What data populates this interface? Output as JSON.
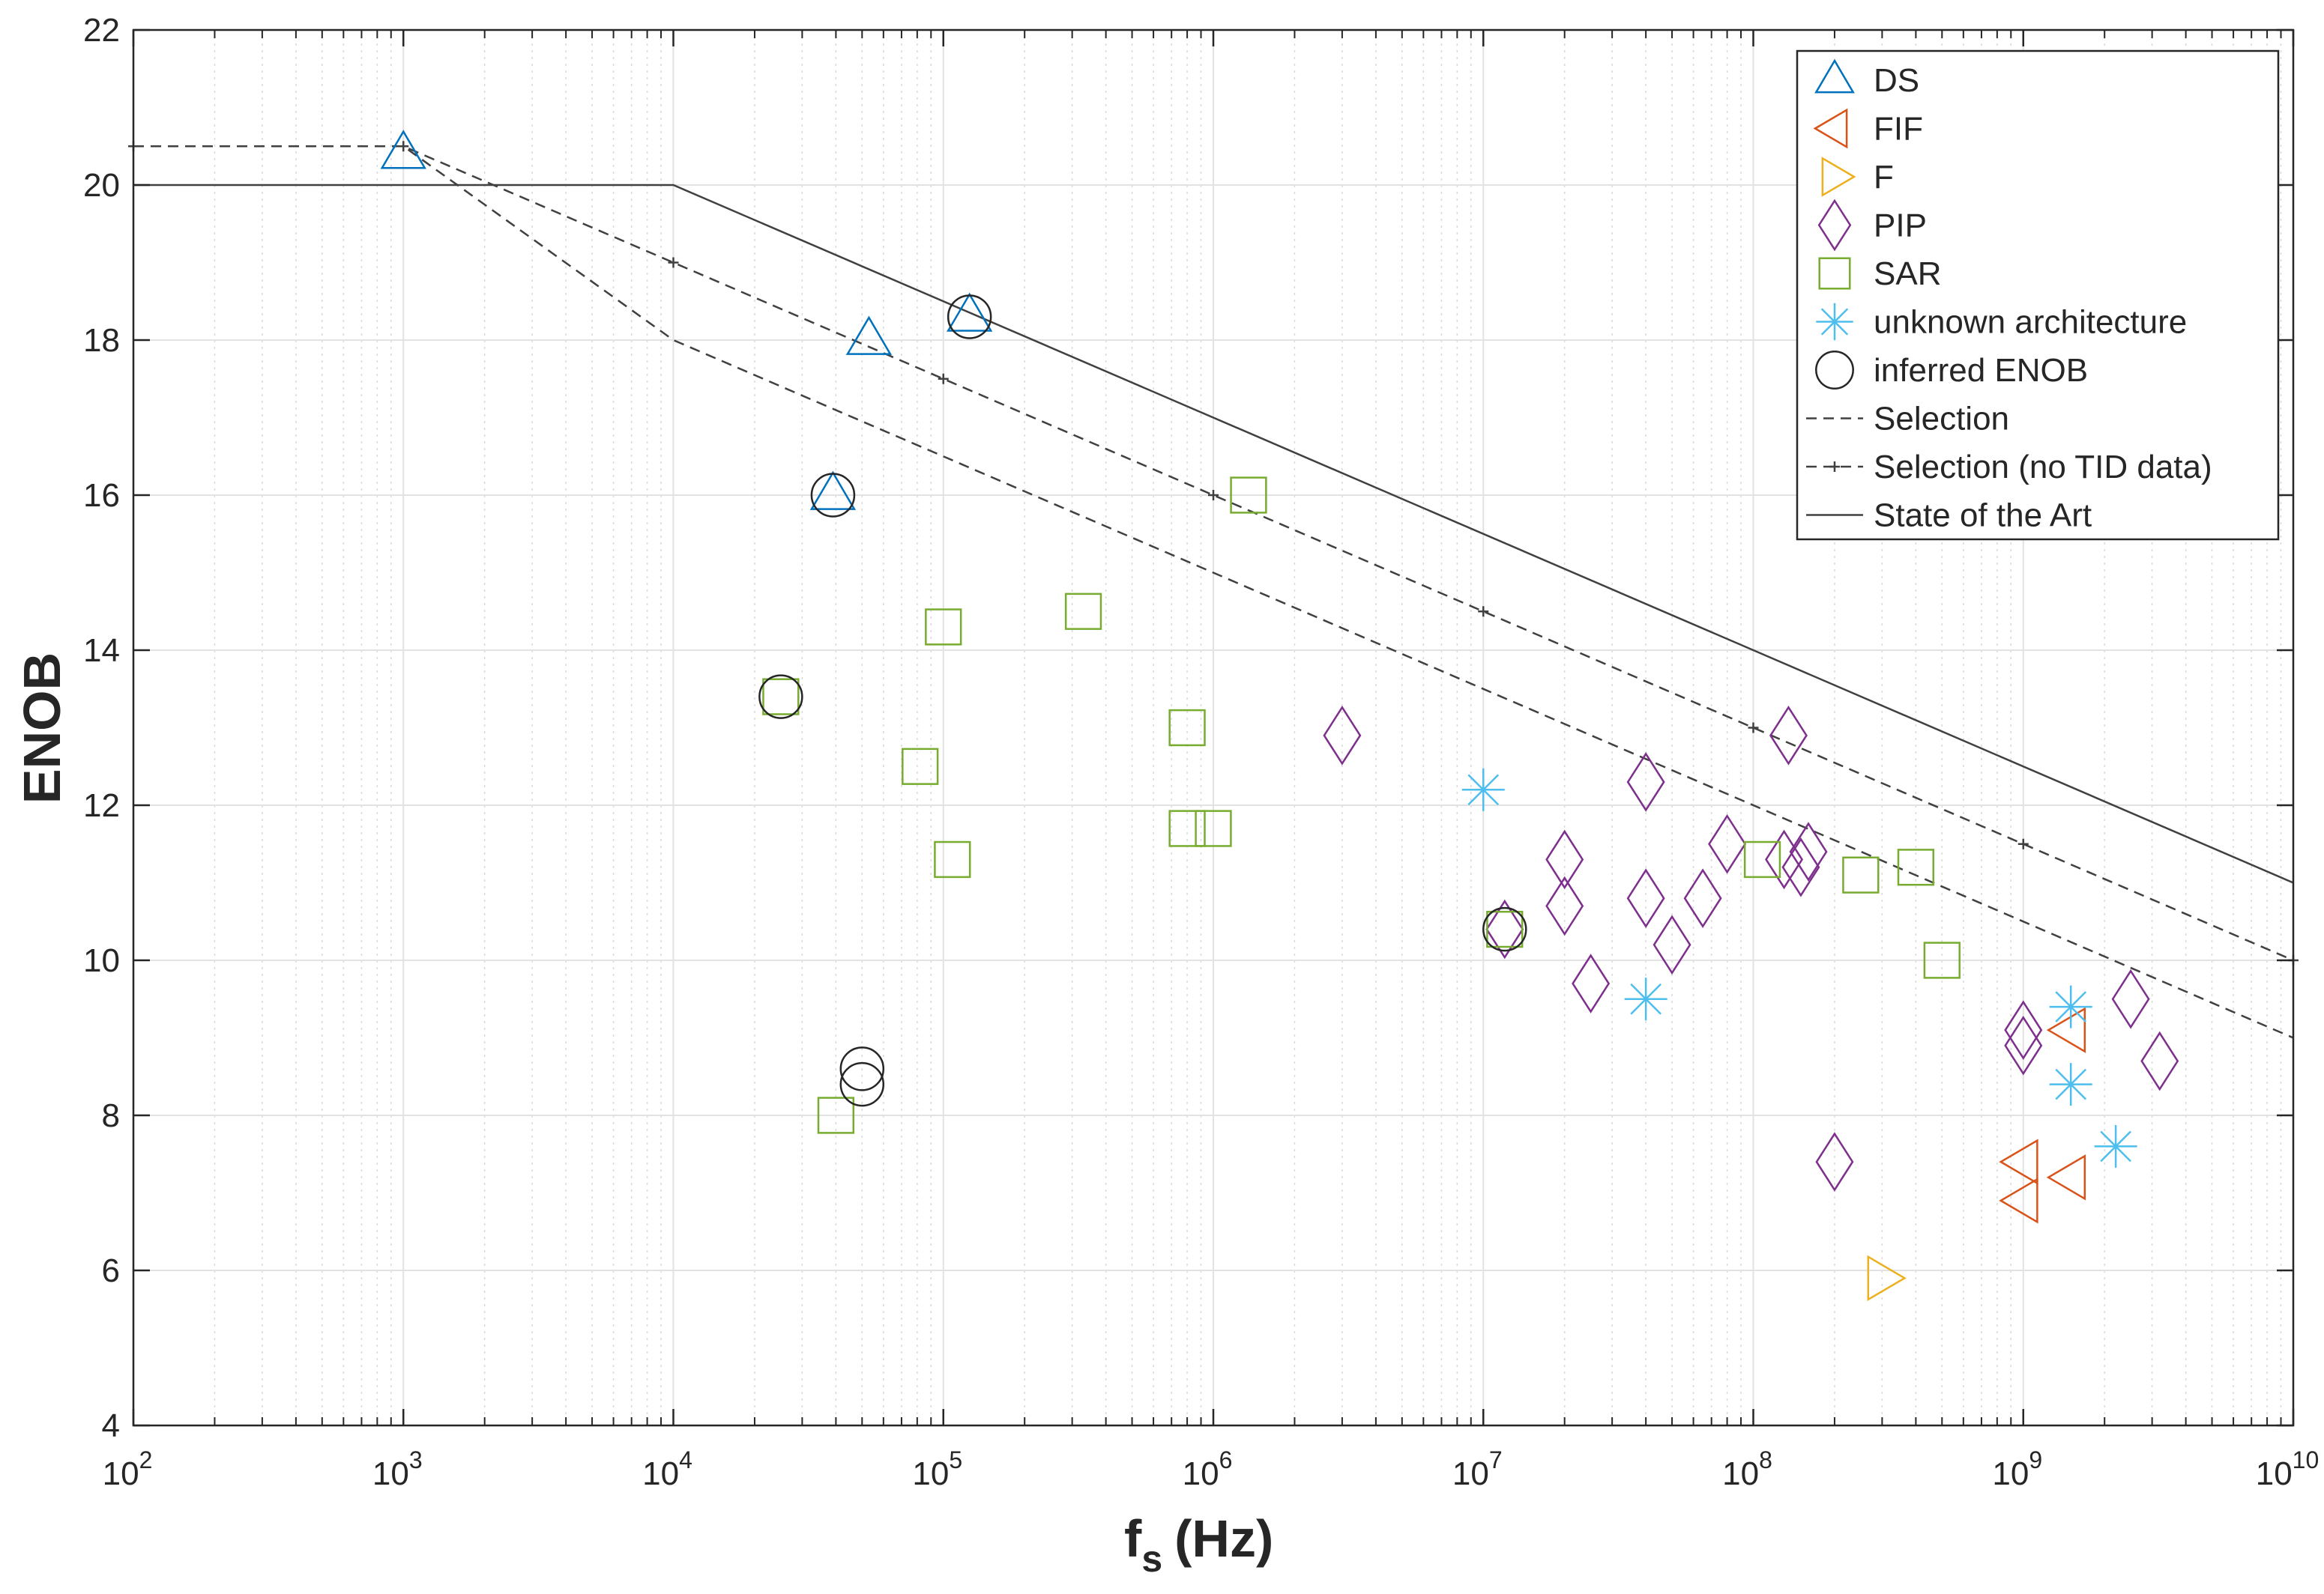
{
  "chart_data": {
    "type": "scatter",
    "title": "",
    "xlabel": "f",
    "xlabel_sub": "s",
    "xlabel_unit": "(Hz)",
    "ylabel": "ENOB",
    "x_scale": "log",
    "xlim": [
      100,
      10000000000
    ],
    "ylim": [
      4,
      22
    ],
    "grid": true,
    "legend_position": "top-right",
    "x_ticks": [
      {
        "value": 100,
        "base": "10",
        "exp": "2"
      },
      {
        "value": 1000,
        "base": "10",
        "exp": "3"
      },
      {
        "value": 10000,
        "base": "10",
        "exp": "4"
      },
      {
        "value": 100000,
        "base": "10",
        "exp": "5"
      },
      {
        "value": 1000000,
        "base": "10",
        "exp": "6"
      },
      {
        "value": 10000000,
        "base": "10",
        "exp": "7"
      },
      {
        "value": 100000000,
        "base": "10",
        "exp": "8"
      },
      {
        "value": 1000000000,
        "base": "10",
        "exp": "9"
      },
      {
        "value": 10000000000,
        "base": "10",
        "exp": "10"
      }
    ],
    "y_ticks": [
      {
        "value": 4,
        "label": "4"
      },
      {
        "value": 6,
        "label": "6"
      },
      {
        "value": 8,
        "label": "8"
      },
      {
        "value": 10,
        "label": "10"
      },
      {
        "value": 12,
        "label": "12"
      },
      {
        "value": 14,
        "label": "14"
      },
      {
        "value": 16,
        "label": "16"
      },
      {
        "value": 18,
        "label": "18"
      },
      {
        "value": 20,
        "label": "20"
      },
      {
        "value": 22,
        "label": "22"
      }
    ],
    "series": [
      {
        "name": "DS",
        "marker": "triangle-up",
        "color": "#0072BD",
        "points": [
          [
            1000,
            20.4
          ],
          [
            53000,
            18.0
          ],
          [
            39000,
            16.0
          ],
          [
            125000,
            18.3
          ]
        ]
      },
      {
        "name": "FIF",
        "marker": "triangle-left",
        "color": "#D95319",
        "points": [
          [
            1000000000,
            7.4
          ],
          [
            1000000000,
            6.9
          ],
          [
            1500000000,
            9.1
          ],
          [
            1500000000,
            7.2
          ]
        ]
      },
      {
        "name": "F",
        "marker": "triangle-right",
        "color": "#EDB120",
        "points": [
          [
            300000000,
            5.9
          ]
        ]
      },
      {
        "name": "PIP",
        "marker": "diamond",
        "color": "#7E2F8E",
        "points": [
          [
            3000000,
            12.9
          ],
          [
            12000000,
            10.4
          ],
          [
            20000000,
            11.3
          ],
          [
            20000000,
            10.7
          ],
          [
            25000000,
            9.7
          ],
          [
            40000000,
            12.3
          ],
          [
            40000000,
            10.8
          ],
          [
            50000000,
            10.2
          ],
          [
            65000000,
            10.8
          ],
          [
            80000000,
            11.5
          ],
          [
            130000000,
            11.3
          ],
          [
            135000000,
            12.9
          ],
          [
            150000000,
            11.2
          ],
          [
            160000000,
            11.4
          ],
          [
            200000000,
            7.4
          ],
          [
            1000000000,
            9.1
          ],
          [
            1000000000,
            8.9
          ],
          [
            2500000000,
            9.5
          ],
          [
            3200000000,
            8.7
          ]
        ]
      },
      {
        "name": "SAR",
        "marker": "square",
        "color": "#77AC30",
        "points": [
          [
            25000,
            13.4
          ],
          [
            40000,
            8.0
          ],
          [
            82000,
            12.5
          ],
          [
            100000,
            14.3
          ],
          [
            108000,
            11.3
          ],
          [
            330000,
            14.5
          ],
          [
            800000,
            13.0
          ],
          [
            800000,
            11.7
          ],
          [
            1000000,
            11.7
          ],
          [
            1350000,
            16.0
          ],
          [
            12000000,
            10.4
          ],
          [
            108000000,
            11.3
          ],
          [
            250000000,
            11.1
          ],
          [
            400000000,
            11.2
          ],
          [
            500000000,
            10.0
          ]
        ]
      },
      {
        "name": "unknown architecture",
        "marker": "asterisk",
        "color": "#4DBEEE",
        "points": [
          [
            10000000,
            12.2
          ],
          [
            40000000,
            9.5
          ],
          [
            1500000000,
            9.4
          ],
          [
            1500000000,
            8.4
          ],
          [
            2200000000,
            7.6
          ]
        ]
      },
      {
        "name": "inferred ENOB",
        "marker": "circle",
        "color": "#262626",
        "points": [
          [
            25000,
            13.4
          ],
          [
            39000,
            16.0
          ],
          [
            125000,
            18.3
          ],
          [
            50000,
            8.6
          ],
          [
            50000,
            8.4
          ],
          [
            12000000,
            10.4
          ]
        ]
      },
      {
        "name": "Selection",
        "marker": "none",
        "line": "dashed",
        "color": "#404040",
        "points": [
          [
            100,
            20.5
          ],
          [
            1000,
            20.5
          ],
          [
            10000,
            18.0
          ],
          [
            10000000000,
            9.0
          ]
        ]
      },
      {
        "name": "Selection (no TID data)",
        "marker": "plus",
        "line": "dashed",
        "color": "#404040",
        "points": [
          [
            100,
            20.5
          ],
          [
            1000,
            20.5
          ],
          [
            10000,
            19.0
          ],
          [
            100000,
            17.5
          ],
          [
            1000000,
            16.0
          ],
          [
            10000000,
            14.5
          ],
          [
            100000000,
            13.0
          ],
          [
            1000000000,
            11.5
          ],
          [
            10000000000,
            10.0
          ]
        ]
      },
      {
        "name": "State of the Art",
        "marker": "none",
        "line": "solid",
        "color": "#404040",
        "points": [
          [
            100,
            20.0
          ],
          [
            10000,
            20.0
          ],
          [
            10000000000,
            11.0
          ]
        ]
      }
    ]
  }
}
